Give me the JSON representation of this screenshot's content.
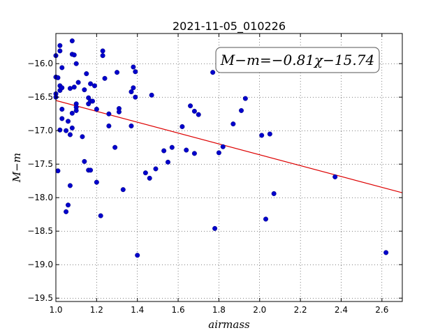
{
  "chart_data": {
    "type": "scatter",
    "title": "2021-11-05_010226",
    "xlabel": "airmass",
    "ylabel": "M−m",
    "xlim": [
      1.0,
      2.7
    ],
    "ylim": [
      -19.55,
      -15.55
    ],
    "y_inverted": true,
    "grid": true,
    "x_ticks": [
      1.0,
      1.2,
      1.4,
      1.6,
      1.8,
      2.0,
      2.2,
      2.4,
      2.6
    ],
    "x_tick_labels": [
      "1.0",
      "1.2",
      "1.4",
      "1.6",
      "1.8",
      "2.0",
      "2.2",
      "2.4",
      "2.6"
    ],
    "y_ticks": [
      -16.0,
      -16.5,
      -17.0,
      -17.5,
      -18.0,
      -18.5,
      -19.0,
      -19.5
    ],
    "y_tick_labels": [
      "−16.0",
      "−16.5",
      "−17.0",
      "−17.5",
      "−18.0",
      "−18.5",
      "−19.0",
      "−19.5"
    ],
    "annotation": "M−m=−0.81χ−15.74",
    "fit_line": {
      "slope": -0.81,
      "intercept": -15.74
    },
    "point_color": "#0000cc",
    "line_color": "#dd0000",
    "points": [
      [
        1.0,
        -15.88
      ],
      [
        1.0,
        -16.2
      ],
      [
        1.0,
        -16.45
      ],
      [
        1.0,
        -16.5
      ],
      [
        1.01,
        -16.21
      ],
      [
        1.01,
        -17.6
      ],
      [
        1.02,
        -15.73
      ],
      [
        1.02,
        -15.81
      ],
      [
        1.02,
        -16.33
      ],
      [
        1.02,
        -16.4
      ],
      [
        1.02,
        -16.99
      ],
      [
        1.03,
        -16.06
      ],
      [
        1.03,
        -16.36
      ],
      [
        1.03,
        -16.68
      ],
      [
        1.03,
        -16.82
      ],
      [
        1.05,
        -17.0
      ],
      [
        1.05,
        -18.21
      ],
      [
        1.06,
        -16.86
      ],
      [
        1.06,
        -18.11
      ],
      [
        1.07,
        -16.37
      ],
      [
        1.07,
        -17.06
      ],
      [
        1.07,
        -17.82
      ],
      [
        1.08,
        -15.66
      ],
      [
        1.08,
        -15.86
      ],
      [
        1.08,
        -16.74
      ],
      [
        1.08,
        -16.96
      ],
      [
        1.09,
        -15.87
      ],
      [
        1.09,
        -16.35
      ],
      [
        1.1,
        -16.0
      ],
      [
        1.1,
        -16.6
      ],
      [
        1.1,
        -16.65
      ],
      [
        1.1,
        -16.7
      ],
      [
        1.11,
        -16.28
      ],
      [
        1.13,
        -17.09
      ],
      [
        1.14,
        -16.39
      ],
      [
        1.14,
        -17.46
      ],
      [
        1.15,
        -16.15
      ],
      [
        1.16,
        -16.51
      ],
      [
        1.16,
        -16.6
      ],
      [
        1.16,
        -17.59
      ],
      [
        1.17,
        -16.3
      ],
      [
        1.17,
        -16.56
      ],
      [
        1.17,
        -17.59
      ],
      [
        1.18,
        -16.56
      ],
      [
        1.19,
        -16.33
      ],
      [
        1.2,
        -16.68
      ],
      [
        1.2,
        -17.77
      ],
      [
        1.22,
        -18.27
      ],
      [
        1.23,
        -15.81
      ],
      [
        1.23,
        -15.88
      ],
      [
        1.24,
        -16.22
      ],
      [
        1.26,
        -16.75
      ],
      [
        1.26,
        -16.93
      ],
      [
        1.29,
        -17.25
      ],
      [
        1.3,
        -16.13
      ],
      [
        1.31,
        -16.67
      ],
      [
        1.31,
        -16.72
      ],
      [
        1.33,
        -17.88
      ],
      [
        1.37,
        -16.42
      ],
      [
        1.37,
        -16.93
      ],
      [
        1.38,
        -16.05
      ],
      [
        1.38,
        -16.36
      ],
      [
        1.39,
        -16.12
      ],
      [
        1.39,
        -16.5
      ],
      [
        1.4,
        -18.86
      ],
      [
        1.44,
        -17.63
      ],
      [
        1.46,
        -17.71
      ],
      [
        1.47,
        -16.47
      ],
      [
        1.49,
        -17.57
      ],
      [
        1.53,
        -17.3
      ],
      [
        1.55,
        -17.47
      ],
      [
        1.57,
        -17.25
      ],
      [
        1.62,
        -16.94
      ],
      [
        1.64,
        -17.29
      ],
      [
        1.66,
        -16.63
      ],
      [
        1.68,
        -16.71
      ],
      [
        1.68,
        -17.34
      ],
      [
        1.7,
        -16.76
      ],
      [
        1.77,
        -16.13
      ],
      [
        1.78,
        -18.46
      ],
      [
        1.8,
        -17.33
      ],
      [
        1.82,
        -17.24
      ],
      [
        1.87,
        -16.9
      ],
      [
        1.91,
        -16.7
      ],
      [
        1.93,
        -16.52
      ],
      [
        2.01,
        -17.07
      ],
      [
        2.03,
        -18.32
      ],
      [
        2.05,
        -17.05
      ],
      [
        2.07,
        -17.94
      ],
      [
        2.37,
        -17.69
      ],
      [
        2.62,
        -18.82
      ]
    ]
  }
}
